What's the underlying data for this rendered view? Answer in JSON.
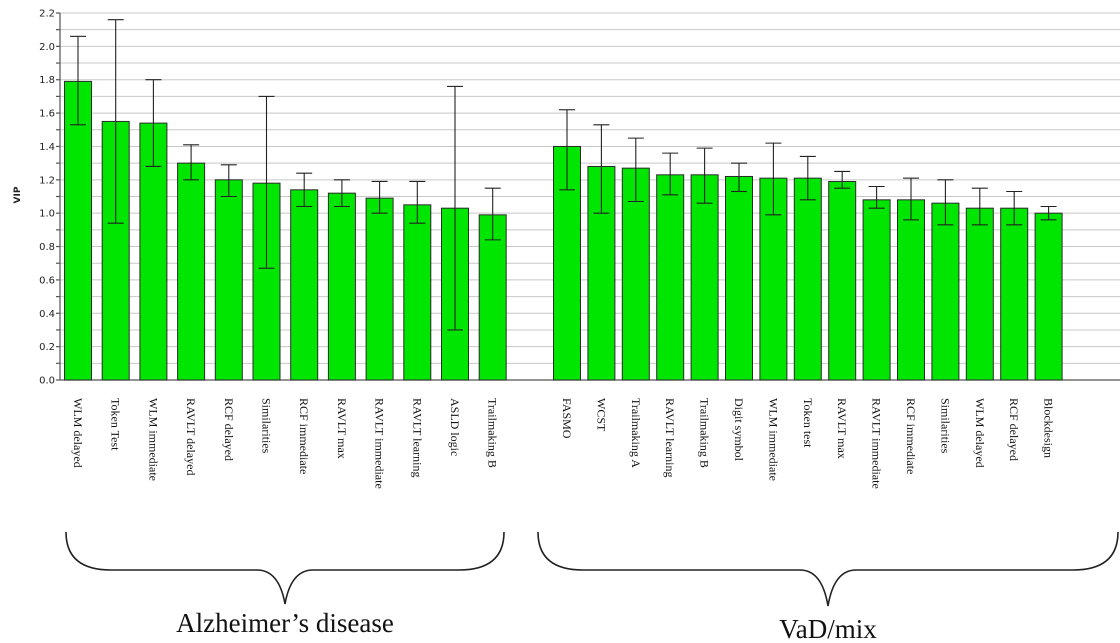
{
  "chart_data": {
    "type": "bar",
    "ylabel": "VIP",
    "ylim": [
      0,
      2.2
    ],
    "yticks": [
      "0.0",
      "0.2",
      "0.4",
      "0.6",
      "0.8",
      "1.0",
      "1.2",
      "1.4",
      "1.6",
      "1.8",
      "2.0",
      "2.2"
    ],
    "grid": true,
    "colors": {
      "bar": "#00e600",
      "bar_stroke": "#2a2a2a",
      "grid": "#c8c8c8"
    },
    "groups": [
      {
        "label": "Alzheimer’s disease",
        "categories": [
          "WLM delayed",
          "Token Test",
          "WLM immediate",
          "RAVLT delayed",
          "RCF delayed",
          "Similarities",
          "RCF immediate",
          "RAVLT max",
          "RAVLT immediate",
          "RAVLT learning",
          "ASLD logic",
          "Trailmaking B"
        ],
        "values": [
          1.79,
          1.55,
          1.54,
          1.3,
          1.2,
          1.18,
          1.14,
          1.12,
          1.09,
          1.05,
          1.03,
          0.99
        ],
        "error_low": [
          1.53,
          0.94,
          1.28,
          1.2,
          1.1,
          0.67,
          1.04,
          1.04,
          1.0,
          0.94,
          0.3,
          0.84
        ],
        "error_high": [
          2.06,
          2.16,
          1.8,
          1.41,
          1.29,
          1.7,
          1.24,
          1.2,
          1.19,
          1.19,
          1.76,
          1.15
        ]
      },
      {
        "label": "VaD/mix",
        "categories": [
          "FASMO",
          "WCST",
          "Trailmaking A",
          "RAVLT learning",
          "Trailmaking B",
          "Digit symbol",
          "WLM immediate",
          "Token test",
          "RAVLT max",
          "RAVLT immediate",
          "RCF immediate",
          "Similarities",
          "WLM delayed",
          "RCF delayed",
          "Blockdesign"
        ],
        "values": [
          1.4,
          1.28,
          1.27,
          1.23,
          1.23,
          1.22,
          1.21,
          1.21,
          1.19,
          1.08,
          1.08,
          1.06,
          1.03,
          1.03,
          1.0
        ],
        "error_low": [
          1.14,
          1.0,
          1.07,
          1.11,
          1.06,
          1.13,
          0.99,
          1.08,
          1.15,
          1.03,
          0.96,
          0.93,
          0.93,
          0.93,
          0.96
        ],
        "error_high": [
          1.62,
          1.53,
          1.45,
          1.36,
          1.39,
          1.3,
          1.42,
          1.34,
          1.25,
          1.16,
          1.21,
          1.2,
          1.15,
          1.13,
          1.04
        ]
      }
    ]
  }
}
